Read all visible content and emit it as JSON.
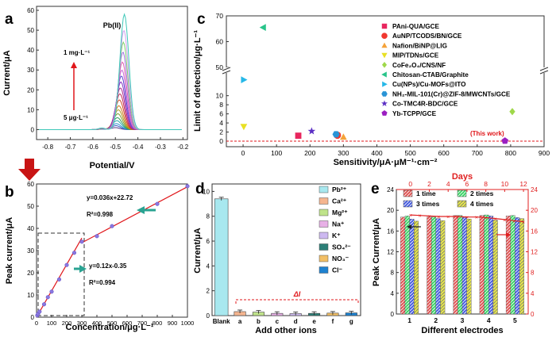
{
  "panels": {
    "a": {
      "letter": "a",
      "xlabel": "Potential/V",
      "ylabel": "Current/μA",
      "peak_label": "Pb(II)",
      "arrow_top": "1 mg·L⁻¹",
      "arrow_bottom": "5 μg·L⁻¹"
    },
    "b": {
      "letter": "b",
      "xlabel": "Concentration/μg·L⁻¹",
      "ylabel": "Peak current/μA",
      "eq1": "y=0.036x+22.72",
      "r1": "R²=0.998",
      "eq2": "y=0.12x-0.35",
      "r2": "R²=0.994"
    },
    "c": {
      "letter": "c",
      "xlabel": "Sensitivity/μA·μM⁻¹·cm⁻²",
      "ylabel": "Limit of detection/μg·L⁻¹",
      "this_work": "(This work)"
    },
    "d": {
      "letter": "d",
      "xlabel": "Add other ions",
      "ylabel": "Current/μA",
      "delta": "ΔI"
    },
    "e": {
      "letter": "e",
      "xlabel": "Different electrodes",
      "ylabel_left": "Peak Current/μA",
      "top_label": "Days"
    }
  },
  "chart_data": [
    {
      "panel": "a",
      "type": "line",
      "xlabel": "Potential/V",
      "ylabel": "Current/μA",
      "xlim": [
        -0.85,
        -0.18
      ],
      "ylim": [
        -5,
        62
      ],
      "xticks": [
        -0.8,
        -0.7,
        -0.6,
        -0.5,
        -0.4,
        -0.3,
        -0.2
      ],
      "yticks": [
        0,
        10,
        20,
        30,
        40,
        50,
        60
      ],
      "peak_potential_range": [
        -0.5,
        -0.46
      ],
      "peak_heights": [
        1,
        2,
        3,
        4.5,
        6,
        8,
        10,
        12,
        15,
        18,
        21,
        24,
        27,
        30,
        34,
        39,
        44,
        50,
        58
      ],
      "annotations": [
        "Pb(II)",
        "1 mg·L⁻¹",
        "5 μg·L⁻¹"
      ]
    },
    {
      "panel": "b",
      "type": "scatter",
      "xlabel": "Concentration/μg·L⁻¹",
      "ylabel": "Peak current/μA",
      "xlim": [
        0,
        1000
      ],
      "ylim": [
        0,
        60
      ],
      "xticks": [
        0,
        100,
        200,
        300,
        400,
        500,
        600,
        700,
        800,
        900,
        1000
      ],
      "yticks": [
        0,
        10,
        20,
        30,
        40,
        50,
        60
      ],
      "x": [
        5,
        10,
        20,
        50,
        75,
        100,
        150,
        200,
        250,
        300,
        400,
        500,
        800,
        1000
      ],
      "y": [
        0.8,
        1.5,
        2.5,
        5.8,
        9,
        11.5,
        17,
        23.5,
        29,
        34,
        36.5,
        41,
        51,
        59
      ],
      "fits": [
        {
          "equation": "y=0.036x+22.72",
          "r2": "R²=0.998"
        },
        {
          "equation": "y=0.12x-0.35",
          "r2": "R²=0.994"
        }
      ]
    },
    {
      "panel": "c",
      "type": "scatter",
      "xlabel": "Sensitivity/μA·μM⁻¹·cm⁻²",
      "ylabel": "Limit of detection/μg·L⁻¹",
      "xlim": [
        -50,
        900
      ],
      "xticks": [
        0,
        100,
        200,
        300,
        400,
        500,
        600,
        700,
        800,
        900
      ],
      "yticks_low": [
        0,
        2,
        4,
        6,
        8,
        10
      ],
      "yticks_high": [
        50,
        60,
        70
      ],
      "axis_break_y": true,
      "series": [
        {
          "name": "PAni-QUA/GCE",
          "color": "#e8265e",
          "marker": "square",
          "x": 165,
          "y": 1.2
        },
        {
          "name": "AuNP/TCODS/BN/GCE",
          "color": "#f0372f",
          "marker": "circle",
          "x": 282,
          "y": 1.3
        },
        {
          "name": "Nafion/BiNP@LIG",
          "color": "#f5a23a",
          "marker": "triangle-up",
          "x": 300,
          "y": 0.9
        },
        {
          "name": "MIP/TDNs/GCE",
          "color": "#e8e024",
          "marker": "triangle-down",
          "x": 2,
          "y": 3.2
        },
        {
          "name": "CoFe₂O₄/CNS/NF",
          "color": "#9fd84a",
          "marker": "diamond",
          "x": 805,
          "y": 6.5
        },
        {
          "name": "Chitosan-CTAB/Graphite",
          "color": "#29c48a",
          "marker": "triangle-left",
          "x": 60,
          "y": 65.5
        },
        {
          "name": "Cu(NPs)/Cu-MOFs@ITO",
          "color": "#26b8e8",
          "marker": "triangle-right",
          "x": 2,
          "y": 13.5
        },
        {
          "name": "NH₂-MIL-101(Cr)@ZIF-8/MWCNTs/GCE",
          "color": "#2a94d6",
          "marker": "hexagon",
          "x": 278,
          "y": 1.5
        },
        {
          "name": "Co-TMC4R-BDC/GCE",
          "color": "#5b2fc4",
          "marker": "star",
          "x": 205,
          "y": 2.2
        },
        {
          "name": "Yb-TCPP/GCE",
          "color": "#9b1fc1",
          "marker": "pentagon",
          "x": 783,
          "y": 0.05
        }
      ],
      "annotations": [
        "(This work)"
      ]
    },
    {
      "panel": "d",
      "type": "bar",
      "xlabel": "Add other ions",
      "ylabel": "Current/μA",
      "ylim": [
        0,
        10.6
      ],
      "yticks": [
        0,
        2,
        4,
        6,
        8,
        10
      ],
      "categories": [
        "Blank",
        "a",
        "b",
        "c",
        "d",
        "e",
        "f",
        "g"
      ],
      "values": [
        9.4,
        0.32,
        0.28,
        0.18,
        0.16,
        0.18,
        0.2,
        0.22
      ],
      "colors": [
        "#a8e8ef",
        "#f5b58f",
        "#bfe38a",
        "#e7b0e6",
        "#cdb9f0",
        "#2c7f77",
        "#f2bf65",
        "#1e82d0"
      ],
      "legend": [
        "Pb²⁺",
        "Ca²⁺",
        "Mg²⁺",
        "Na⁺",
        "K⁺",
        "SO₄²⁻",
        "NO₃⁻",
        "Cl⁻"
      ],
      "annotations": [
        "ΔI"
      ]
    },
    {
      "panel": "e",
      "type": "bar",
      "xlabel": "Different electrodes",
      "ylabel": "Peak Current/μA",
      "ylim": [
        0,
        24
      ],
      "yticks": [
        0,
        4,
        8,
        12,
        16,
        20,
        24
      ],
      "categories": [
        "1",
        "2",
        "3",
        "4",
        "5"
      ],
      "series": [
        {
          "name": "1 time",
          "color": "#e05555",
          "values": [
            18.7,
            18.7,
            19.0,
            19.0,
            18.9
          ]
        },
        {
          "name": "2 times",
          "color": "#3fd66a",
          "values": [
            18.9,
            18.7,
            19.0,
            19.1,
            19.0
          ]
        },
        {
          "name": "3 times",
          "color": "#4a5fe0",
          "values": [
            18.3,
            18.4,
            18.6,
            18.9,
            18.6
          ]
        },
        {
          "name": "4 times",
          "color": "#e8e84a",
          "values": [
            17.9,
            18.0,
            18.3,
            18.1,
            18.4
          ]
        }
      ],
      "top_axis": {
        "label": "Days",
        "xlim": [
          -1.5,
          12.5
        ],
        "xticks": [
          0,
          2,
          4,
          6,
          8,
          10,
          12
        ],
        "ylim": [
          0,
          24
        ],
        "yticks": [
          0,
          4,
          8,
          12,
          16,
          20,
          24
        ],
        "color": "#e02020"
      },
      "stability_line": {
        "x": [
          0,
          1,
          2,
          3,
          4,
          5,
          6,
          7,
          8,
          9,
          10,
          11,
          12
        ],
        "y": [
          19.1,
          19.0,
          18.9,
          18.8,
          18.8,
          18.8,
          18.7,
          18.7,
          18.6,
          18.4,
          18.2,
          18.0,
          17.8
        ],
        "color": "#e02020"
      }
    }
  ]
}
